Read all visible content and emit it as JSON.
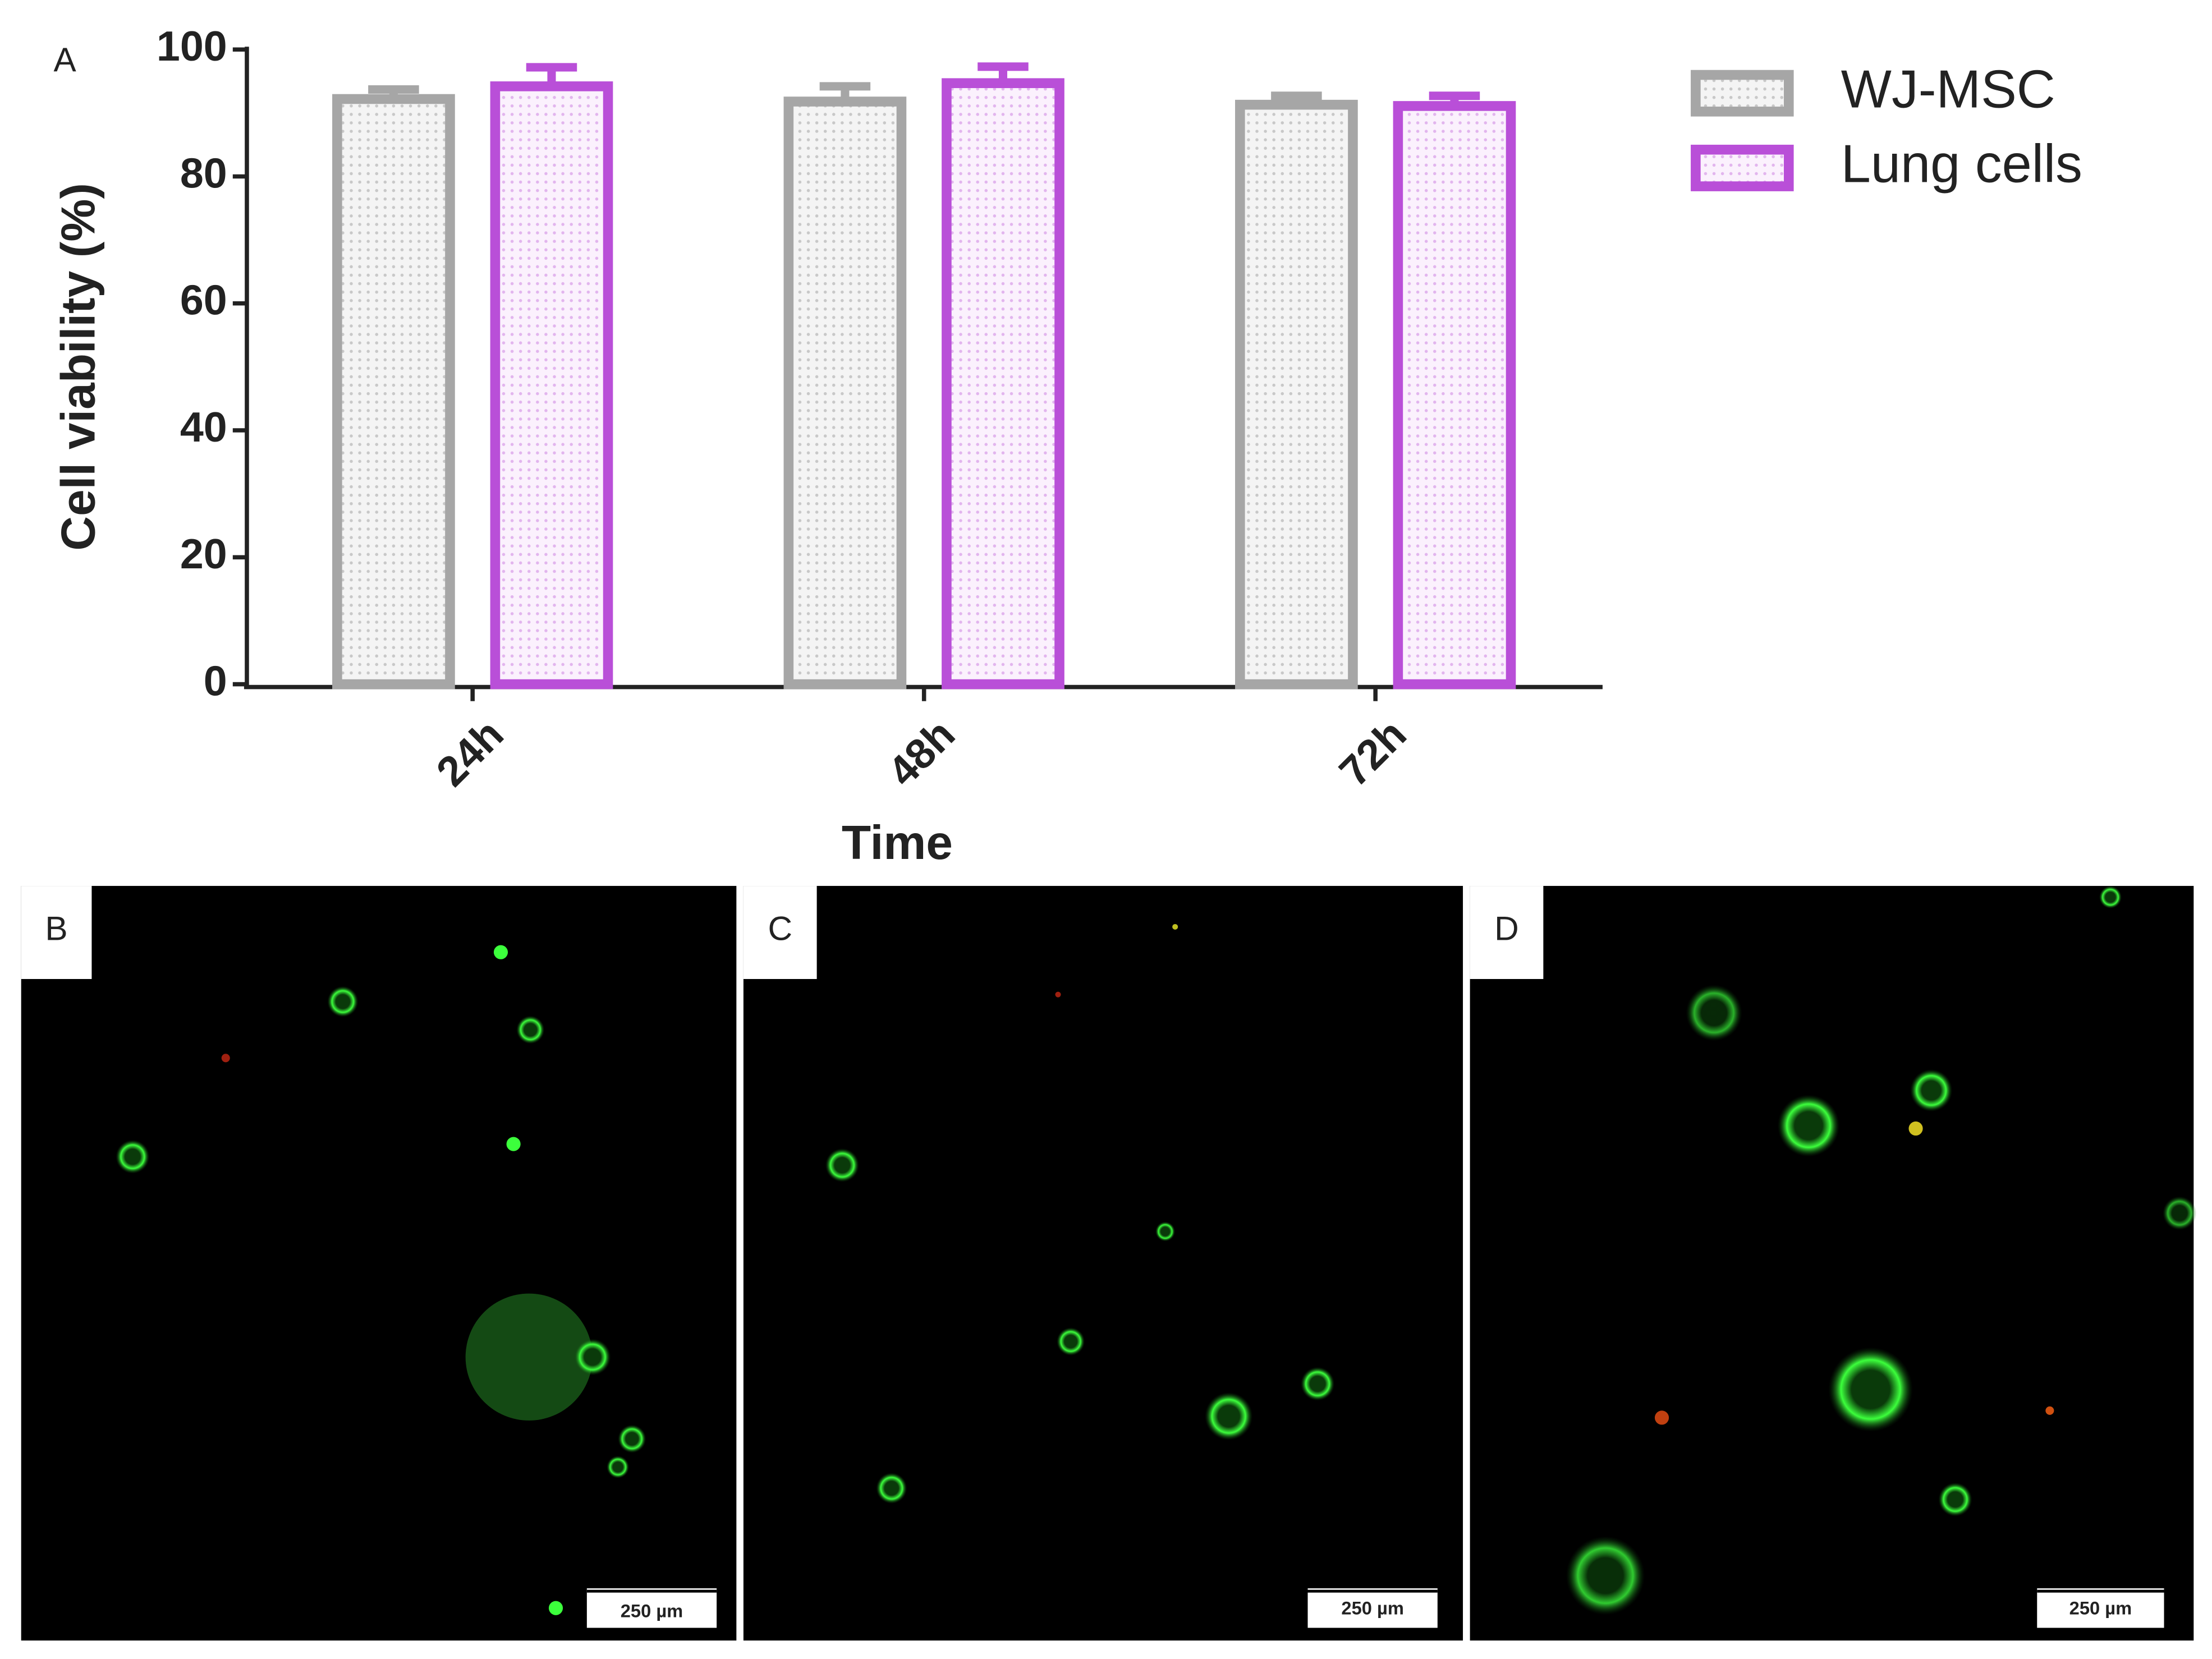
{
  "chart_data": {
    "type": "bar",
    "panel_label": "A",
    "categories": [
      "24h",
      "48h",
      "72h"
    ],
    "xlabel": "Time",
    "ylabel": "Cell viability (%)",
    "series": [
      {
        "name": "WJ-MSC",
        "color": "#a6a6a6",
        "values": [
          92.2,
          91.8,
          91.3
        ],
        "errors": [
          1.5,
          2.4,
          1.4
        ]
      },
      {
        "name": "Lung cells",
        "color": "#b94fd8",
        "values": [
          94.2,
          94.7,
          91.1
        ],
        "errors": [
          3.0,
          2.6,
          1.6
        ]
      }
    ],
    "ylim": [
      0,
      100
    ],
    "yticks": [
      0,
      20,
      40,
      60,
      80,
      100
    ],
    "grid": false,
    "legend": "right"
  },
  "images": [
    {
      "label": "B",
      "scale_bar": "250 µm"
    },
    {
      "label": "C",
      "scale_bar": "250 µm"
    },
    {
      "label": "D",
      "scale_bar": "250 µm"
    }
  ]
}
